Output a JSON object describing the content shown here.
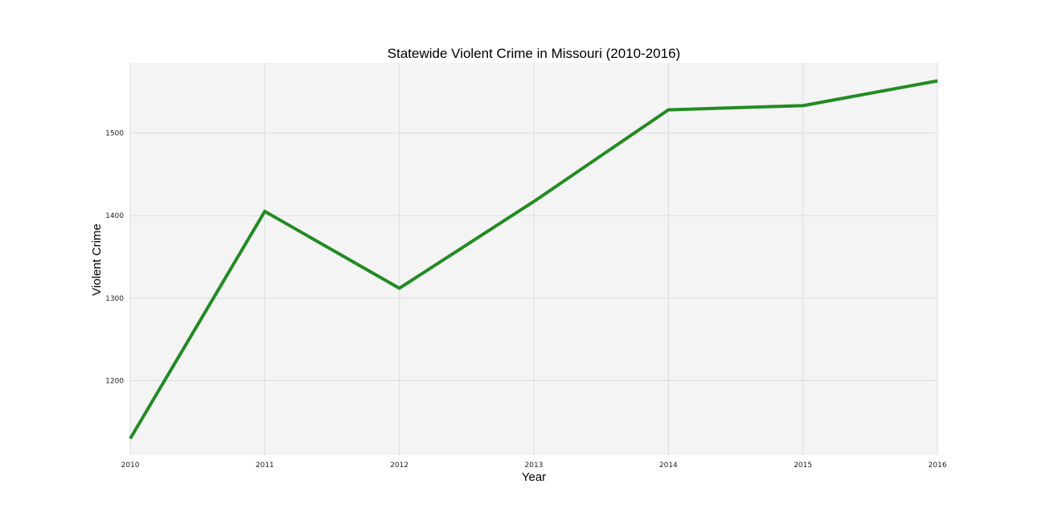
{
  "chart_data": {
    "type": "line",
    "title": "Statewide Violent Crime in Missouri (2010-2016)",
    "xlabel": "Year",
    "ylabel": "Violent Crime",
    "x": [
      2010,
      2011,
      2012,
      2013,
      2014,
      2015,
      2016
    ],
    "series": [
      {
        "values": [
          1130,
          1405,
          1312,
          1417,
          1528,
          1533,
          1563
        ]
      }
    ],
    "xticks": [
      "2010",
      "2011",
      "2012",
      "2013",
      "2014",
      "2015",
      "2016"
    ],
    "yticks": [
      "1200",
      "1300",
      "1400",
      "1500"
    ],
    "xlim": [
      2010,
      2016
    ],
    "ylim": [
      1110,
      1585
    ],
    "grid": true,
    "colors": {
      "line": "#228b22",
      "plot_background": "#f4f4f4",
      "grid": "#dcdcdc"
    }
  }
}
